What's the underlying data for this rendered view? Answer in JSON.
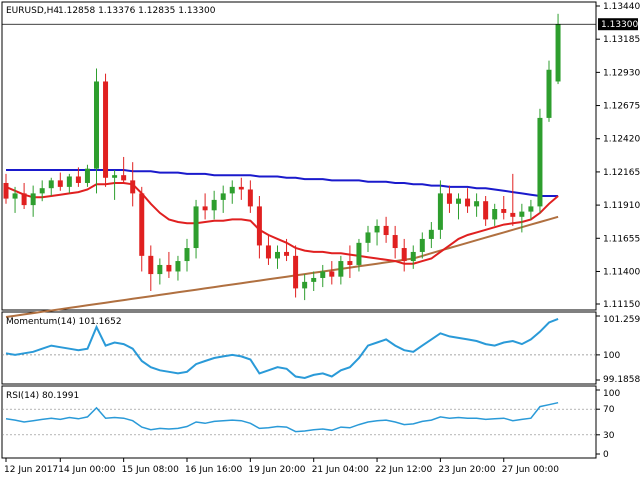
{
  "header": {
    "symbol": "EURUSD,H4",
    "ohlc": "1.12858 1.13376 1.12835 1.13300"
  },
  "colors": {
    "bull": "#2e9e2e",
    "bear": "#e02020",
    "ma_fast": "#e02020",
    "ma_mid": "#1a1acc",
    "ma_slow": "#b07040",
    "momentum": "#2a9ad8",
    "rsi": "#2a9ad8",
    "level_line": "#888888"
  },
  "price_axis": {
    "ticks": [
      "1.13440",
      "1.13185",
      "1.12930",
      "1.12675",
      "1.12420",
      "1.12165",
      "1.11910",
      "1.11655",
      "1.11400",
      "1.11150"
    ],
    "current_price": "1.13300"
  },
  "momentum_panel": {
    "label": "Momentum(14) 101.1652",
    "ticks": [
      "101.2595",
      "100",
      "99.1858"
    ]
  },
  "rsi_panel": {
    "label": "RSI(14) 80.1991",
    "ticks": [
      "100",
      "70",
      "30",
      "0"
    ]
  },
  "time_axis": [
    "12 Jun 2017",
    "14 Jun 00:00",
    "15 Jun 08:00",
    "16 Jun 16:00",
    "19 Jun 20:00",
    "21 Jun 04:00",
    "22 Jun 12:00",
    "23 Jun 20:00",
    "27 Jun 00:00"
  ],
  "chart_data": {
    "type": "candlestick",
    "symbol": "EURUSD",
    "timeframe": "H4",
    "ylim": [
      1.1115,
      1.1344
    ],
    "candles": [
      [
        1.1208,
        1.1215,
        1.1192,
        1.1196
      ],
      [
        1.1196,
        1.1205,
        1.1185,
        1.12
      ],
      [
        1.12,
        1.1208,
        1.1188,
        1.1191
      ],
      [
        1.1191,
        1.1206,
        1.1182,
        1.12
      ],
      [
        1.12,
        1.121,
        1.1194,
        1.1204
      ],
      [
        1.1204,
        1.1212,
        1.1198,
        1.121
      ],
      [
        1.121,
        1.1216,
        1.1202,
        1.1205
      ],
      [
        1.1205,
        1.1215,
        1.12,
        1.1213
      ],
      [
        1.1213,
        1.122,
        1.1205,
        1.1208
      ],
      [
        1.1208,
        1.1222,
        1.1205,
        1.1219
      ],
      [
        1.1219,
        1.1296,
        1.12,
        1.1286
      ],
      [
        1.1286,
        1.1292,
        1.1205,
        1.1212
      ],
      [
        1.1212,
        1.1218,
        1.1195,
        1.1214
      ],
      [
        1.1214,
        1.1228,
        1.1208,
        1.121
      ],
      [
        1.121,
        1.1224,
        1.119,
        1.12
      ],
      [
        1.12,
        1.1205,
        1.114,
        1.1152
      ],
      [
        1.1152,
        1.116,
        1.1125,
        1.1138
      ],
      [
        1.1138,
        1.115,
        1.113,
        1.1145
      ],
      [
        1.1145,
        1.1155,
        1.1135,
        1.114
      ],
      [
        1.114,
        1.1152,
        1.1133,
        1.1148
      ],
      [
        1.1148,
        1.1165,
        1.114,
        1.1158
      ],
      [
        1.1158,
        1.1195,
        1.115,
        1.119
      ],
      [
        1.119,
        1.12,
        1.118,
        1.1187
      ],
      [
        1.1187,
        1.1202,
        1.118,
        1.1195
      ],
      [
        1.1195,
        1.1206,
        1.1185,
        1.12
      ],
      [
        1.12,
        1.121,
        1.1192,
        1.1205
      ],
      [
        1.1205,
        1.1212,
        1.1195,
        1.1203
      ],
      [
        1.1203,
        1.121,
        1.1185,
        1.119
      ],
      [
        1.119,
        1.1198,
        1.115,
        1.116
      ],
      [
        1.116,
        1.1168,
        1.1145,
        1.115
      ],
      [
        1.115,
        1.116,
        1.1142,
        1.1155
      ],
      [
        1.1155,
        1.1165,
        1.1148,
        1.1152
      ],
      [
        1.1152,
        1.116,
        1.112,
        1.1127
      ],
      [
        1.1127,
        1.1138,
        1.1118,
        1.1132
      ],
      [
        1.1132,
        1.114,
        1.1125,
        1.1135
      ],
      [
        1.1135,
        1.1145,
        1.1128,
        1.114
      ],
      [
        1.114,
        1.1148,
        1.113,
        1.1136
      ],
      [
        1.1136,
        1.1152,
        1.113,
        1.1148
      ],
      [
        1.1148,
        1.116,
        1.1135,
        1.1145
      ],
      [
        1.1145,
        1.1165,
        1.114,
        1.1162
      ],
      [
        1.1162,
        1.1175,
        1.1155,
        1.117
      ],
      [
        1.117,
        1.118,
        1.116,
        1.1175
      ],
      [
        1.1175,
        1.1182,
        1.1162,
        1.1168
      ],
      [
        1.1168,
        1.1175,
        1.115,
        1.1158
      ],
      [
        1.1158,
        1.1165,
        1.114,
        1.1148
      ],
      [
        1.1148,
        1.116,
        1.1142,
        1.1155
      ],
      [
        1.1155,
        1.117,
        1.115,
        1.1165
      ],
      [
        1.1165,
        1.1178,
        1.1158,
        1.1172
      ],
      [
        1.1172,
        1.121,
        1.1165,
        1.12
      ],
      [
        1.12,
        1.1206,
        1.1185,
        1.1192
      ],
      [
        1.1192,
        1.12,
        1.118,
        1.1196
      ],
      [
        1.1196,
        1.1204,
        1.1185,
        1.119
      ],
      [
        1.119,
        1.12,
        1.1182,
        1.1194
      ],
      [
        1.1194,
        1.1198,
        1.1175,
        1.118
      ],
      [
        1.118,
        1.1192,
        1.1175,
        1.1188
      ],
      [
        1.1188,
        1.1198,
        1.118,
        1.1185
      ],
      [
        1.1185,
        1.1215,
        1.1175,
        1.1182
      ],
      [
        1.1182,
        1.1192,
        1.117,
        1.1186
      ],
      [
        1.1186,
        1.1195,
        1.118,
        1.119
      ],
      [
        1.119,
        1.1265,
        1.1185,
        1.1258
      ],
      [
        1.1258,
        1.1302,
        1.1255,
        1.1295
      ],
      [
        1.1286,
        1.1338,
        1.1284,
        1.133
      ]
    ],
    "ma_fast_values": [
      1.1205,
      1.1202,
      1.1199,
      1.1197,
      1.1197,
      1.1198,
      1.1199,
      1.12,
      1.1201,
      1.1203,
      1.1207,
      1.1207,
      1.1208,
      1.1208,
      1.1207,
      1.12,
      1.1192,
      1.1185,
      1.118,
      1.1178,
      1.1177,
      1.1177,
      1.1178,
      1.1179,
      1.1179,
      1.118,
      1.118,
      1.1179,
      1.1172,
      1.1168,
      1.1165,
      1.1162,
      1.1158,
      1.1156,
      1.1155,
      1.1155,
      1.1154,
      1.1154,
      1.1153,
      1.1152,
      1.1151,
      1.115,
      1.1149,
      1.1148,
      1.1146,
      1.1146,
      1.1148,
      1.115,
      1.1155,
      1.116,
      1.1165,
      1.1168,
      1.117,
      1.1172,
      1.1174,
      1.1176,
      1.1177,
      1.1178,
      1.118,
      1.1185,
      1.1192,
      1.1198
    ],
    "ma_mid_values": [
      1.1218,
      1.1218,
      1.1218,
      1.1218,
      1.1218,
      1.1218,
      1.1218,
      1.1218,
      1.1218,
      1.1218,
      1.1218,
      1.1218,
      1.1218,
      1.1218,
      1.1217,
      1.1217,
      1.1217,
      1.1216,
      1.1216,
      1.1216,
      1.1215,
      1.1215,
      1.1215,
      1.1214,
      1.1214,
      1.1214,
      1.1214,
      1.1214,
      1.1213,
      1.1213,
      1.1213,
      1.1212,
      1.1212,
      1.1211,
      1.1211,
      1.1211,
      1.121,
      1.121,
      1.121,
      1.121,
      1.1209,
      1.1209,
      1.1209,
      1.1208,
      1.1208,
      1.1207,
      1.1207,
      1.1206,
      1.1206,
      1.1205,
      1.1205,
      1.1205,
      1.1204,
      1.1204,
      1.1203,
      1.1202,
      1.1201,
      1.12,
      1.1199,
      1.1198,
      1.1198,
      1.1198
    ],
    "ma_slow_values": [
      1.1105,
      1.1106,
      1.1107,
      1.1108,
      1.1109,
      1.111,
      1.1111,
      1.1112,
      1.1113,
      1.1114,
      1.1115,
      1.1116,
      1.1117,
      1.1118,
      1.1119,
      1.112,
      1.1121,
      1.1122,
      1.1123,
      1.1124,
      1.1125,
      1.1126,
      1.1127,
      1.1128,
      1.1129,
      1.113,
      1.1131,
      1.1132,
      1.1133,
      1.1134,
      1.1135,
      1.1136,
      1.1137,
      1.1138,
      1.1139,
      1.114,
      1.1141,
      1.1142,
      1.1143,
      1.1144,
      1.1145,
      1.1146,
      1.1147,
      1.1148,
      1.1149,
      1.115,
      1.1152,
      1.1154,
      1.1156,
      1.1158,
      1.116,
      1.1162,
      1.1164,
      1.1166,
      1.1168,
      1.117,
      1.1172,
      1.1174,
      1.1176,
      1.1178,
      1.118,
      1.1182
    ],
    "momentum_values": [
      100.05,
      100.0,
      100.05,
      100.1,
      100.2,
      100.3,
      100.25,
      100.2,
      100.15,
      100.2,
      100.9,
      100.3,
      100.4,
      100.35,
      100.2,
      99.8,
      99.6,
      99.5,
      99.45,
      99.4,
      99.45,
      99.7,
      99.8,
      99.9,
      99.95,
      100.0,
      99.95,
      99.85,
      99.4,
      99.5,
      99.6,
      99.55,
      99.3,
      99.25,
      99.35,
      99.4,
      99.3,
      99.5,
      99.6,
      99.9,
      100.3,
      100.4,
      100.5,
      100.3,
      100.15,
      100.1,
      100.3,
      100.5,
      100.7,
      100.6,
      100.55,
      100.5,
      100.45,
      100.35,
      100.3,
      100.4,
      100.45,
      100.35,
      100.5,
      100.75,
      101.05,
      101.1652
    ],
    "rsi_values": [
      55,
      53,
      50,
      52,
      54,
      56,
      54,
      57,
      55,
      58,
      72,
      56,
      57,
      56,
      52,
      42,
      38,
      40,
      39,
      40,
      43,
      50,
      48,
      51,
      52,
      53,
      52,
      48,
      40,
      41,
      43,
      42,
      35,
      36,
      38,
      39,
      37,
      42,
      41,
      46,
      50,
      52,
      53,
      50,
      46,
      47,
      51,
      53,
      58,
      56,
      57,
      56,
      56,
      54,
      55,
      56,
      52,
      54,
      56,
      74,
      77,
      80.1991
    ],
    "momentum_ylim": [
      99.1858,
      101.2595
    ],
    "momentum_level": 100,
    "rsi_ylim": [
      0,
      100
    ],
    "rsi_levels": [
      30,
      70
    ]
  }
}
